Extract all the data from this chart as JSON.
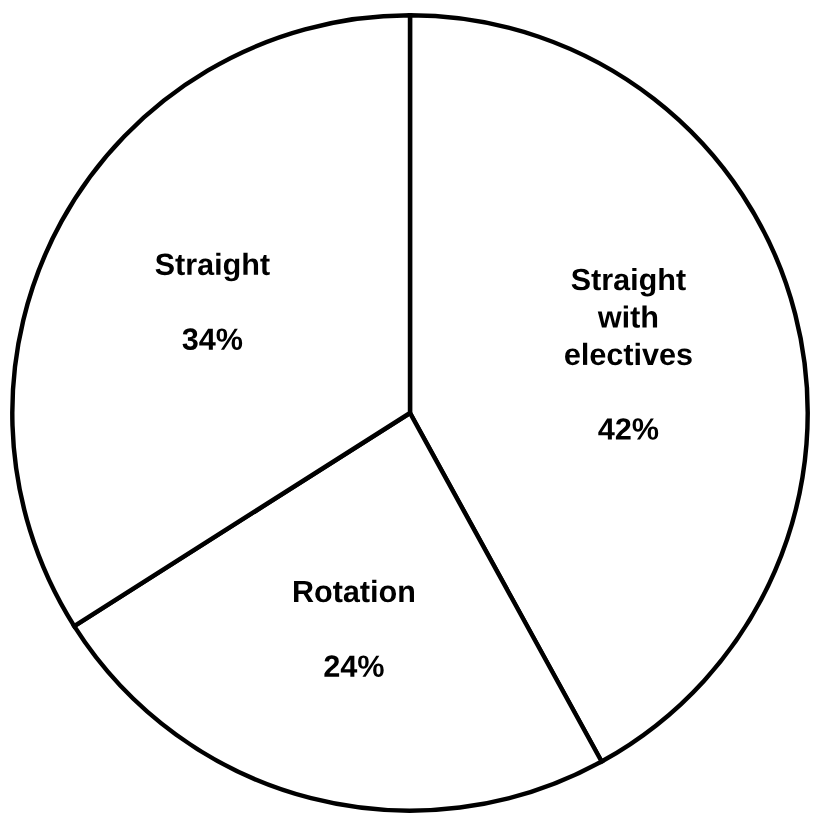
{
  "chart_data": {
    "type": "pie",
    "categories": [
      "Straight\nwith\nelectives",
      "Rotation",
      "Straight"
    ],
    "values": [
      42,
      24,
      34
    ],
    "colors": [
      "#ffffff",
      "#ffffff",
      "#ffffff"
    ],
    "value_labels": [
      "42%",
      "24%",
      "34%"
    ],
    "legend": false
  }
}
